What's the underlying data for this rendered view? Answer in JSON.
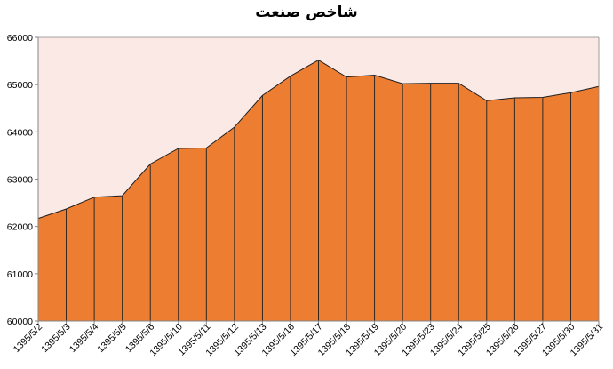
{
  "chart_data": {
    "type": "area",
    "title": "شاخص صنعت",
    "xlabel": "",
    "ylabel": "",
    "ylim": [
      60000,
      66000
    ],
    "yticks": [
      "60000",
      "61000",
      "62000",
      "63000",
      "64000",
      "65000",
      "66000"
    ],
    "grid": false,
    "categories": [
      "1395/5/2",
      "1395/5/3",
      "1395/5/4",
      "1395/5/5",
      "1395/5/6",
      "1395/5/10",
      "1395/5/11",
      "1395/5/12",
      "1395/5/13",
      "1395/5/16",
      "1395/5/17",
      "1395/5/18",
      "1395/5/19",
      "1395/5/20",
      "1395/5/23",
      "1395/5/24",
      "1395/5/25",
      "1395/5/26",
      "1395/5/27",
      "1395/5/30",
      "1395/5/31"
    ],
    "series": [
      {
        "values": [
          62170,
          62370,
          62620,
          62650,
          63320,
          63650,
          63660,
          64100,
          64770,
          65180,
          65520,
          65160,
          65200,
          65020,
          65030,
          65030,
          64660,
          64720,
          64730,
          64830,
          64960
        ]
      }
    ],
    "colors": {
      "fill": "#ed7d31",
      "stroke": "#1f1f1f",
      "plot_bg": "#fbe9e6",
      "axis": "#868686"
    }
  }
}
